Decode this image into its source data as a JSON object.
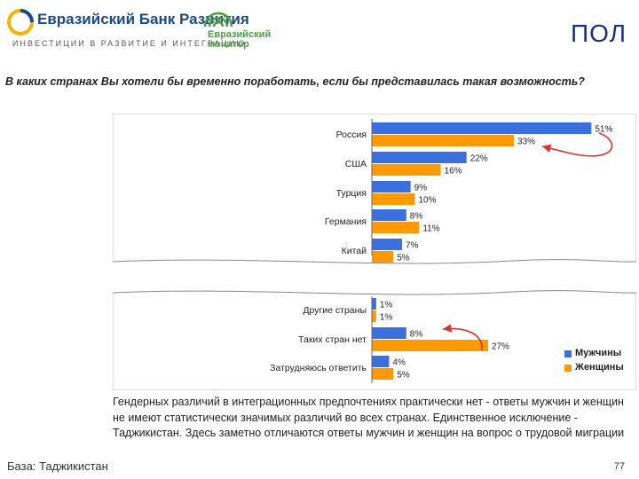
{
  "header": {
    "bank_name": "Евразийский Банк Развития",
    "bank_tagline": "ИНВЕСТИЦИИ В РАЗВИТИЕ И ИНТЕГРАЦИЮ",
    "monitor_line1": "Евразийский",
    "monitor_line2": "монитор",
    "title": "ПОЛ"
  },
  "question": "В каких странах Вы хотели бы временно поработать, если бы представилась такая возможность?",
  "colors": {
    "men": "#3a6fe0",
    "women": "#ff9900",
    "arrow": "#e03030",
    "title": "#1a2f8a"
  },
  "chart_data": {
    "type": "bar",
    "orientation": "horizontal",
    "unit": "%",
    "categories": [
      "Россия",
      "США",
      "Турция",
      "Германия",
      "Китай",
      "Другие страны",
      "Таких стран нет",
      "Затрудняюсь ответить"
    ],
    "series": [
      {
        "name": "Мужчины",
        "values": [
          51,
          22,
          9,
          8,
          7,
          1,
          8,
          4
        ]
      },
      {
        "name": "Женщины",
        "values": [
          33,
          16,
          10,
          11,
          5,
          1,
          27,
          5
        ]
      }
    ],
    "axis_break": "between Китай and Другие страны",
    "legend_position": "bottom-right",
    "annotations": [
      "arrow between Россия values",
      "arrow between Таких стран нет values"
    ]
  },
  "comment": "Гендерных различий в интеграционных предпочтениях практически нет - ответы мужчин и женщин не имеют статистически значимых различий во всех странах. Единственное исключение - Таджикистан. Здесь заметно отличаются ответы мужчин и женщин на вопрос о трудовой миграции",
  "footer": {
    "base": "База: Таджикистан",
    "page": "77"
  }
}
